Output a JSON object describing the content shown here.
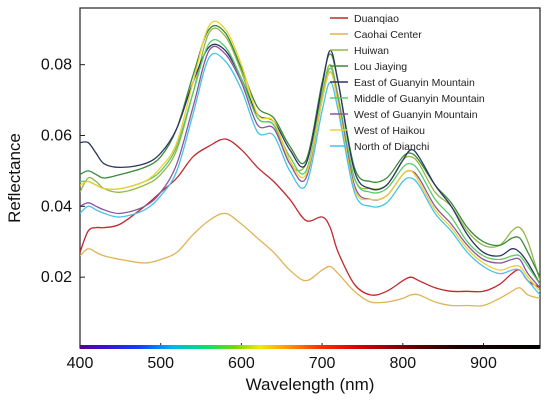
{
  "chart_data": {
    "type": "line",
    "title": "",
    "xlabel": "Wavelength (nm)",
    "ylabel": "Reflectance",
    "xlim": [
      400,
      970
    ],
    "ylim": [
      0.0,
      0.096
    ],
    "xticks": [
      400,
      500,
      600,
      700,
      800,
      900
    ],
    "xtick_labels": [
      "400",
      "500",
      "600",
      "700",
      "800",
      "900"
    ],
    "yticks": [
      0.02,
      0.04,
      0.06,
      0.08
    ],
    "ytick_labels": [
      "0.02",
      "0.04",
      "0.06",
      "0.08"
    ],
    "grid": false,
    "legend_position": "top-right",
    "spectrum_bar": true,
    "x": [
      400,
      410,
      420,
      430,
      450,
      480,
      500,
      520,
      540,
      560,
      580,
      600,
      620,
      640,
      660,
      680,
      700,
      710,
      720,
      740,
      760,
      780,
      800,
      810,
      820,
      840,
      860,
      880,
      900,
      920,
      935,
      945,
      955,
      970
    ],
    "series": [
      {
        "name": "Duanqiao",
        "color": "#c0282d",
        "values": [
          0.027,
          0.033,
          0.034,
          0.034,
          0.035,
          0.04,
          0.044,
          0.048,
          0.054,
          0.057,
          0.059,
          0.056,
          0.051,
          0.047,
          0.042,
          0.036,
          0.037,
          0.034,
          0.027,
          0.018,
          0.015,
          0.016,
          0.019,
          0.02,
          0.019,
          0.017,
          0.016,
          0.016,
          0.016,
          0.018,
          0.021,
          0.022,
          0.019,
          0.017
        ]
      },
      {
        "name": "Caohai Center",
        "color": "#e0b455",
        "values": [
          0.026,
          0.028,
          0.027,
          0.026,
          0.025,
          0.024,
          0.025,
          0.027,
          0.032,
          0.036,
          0.038,
          0.035,
          0.031,
          0.027,
          0.022,
          0.019,
          0.022,
          0.023,
          0.021,
          0.016,
          0.013,
          0.013,
          0.014,
          0.015,
          0.015,
          0.013,
          0.012,
          0.012,
          0.012,
          0.014,
          0.016,
          0.017,
          0.015,
          0.014
        ]
      },
      {
        "name": "Huiwan",
        "color": "#93b84a",
        "values": [
          0.044,
          0.048,
          0.047,
          0.045,
          0.044,
          0.046,
          0.049,
          0.056,
          0.072,
          0.089,
          0.088,
          0.078,
          0.065,
          0.063,
          0.052,
          0.052,
          0.072,
          0.08,
          0.071,
          0.048,
          0.045,
          0.046,
          0.053,
          0.054,
          0.052,
          0.044,
          0.04,
          0.033,
          0.029,
          0.029,
          0.033,
          0.034,
          0.03,
          0.019
        ]
      },
      {
        "name": "Lou Jiaying",
        "color": "#3a8a3a",
        "values": [
          0.049,
          0.05,
          0.049,
          0.048,
          0.049,
          0.051,
          0.054,
          0.062,
          0.077,
          0.09,
          0.089,
          0.079,
          0.068,
          0.065,
          0.057,
          0.053,
          0.075,
          0.083,
          0.075,
          0.051,
          0.047,
          0.048,
          0.054,
          0.055,
          0.053,
          0.046,
          0.041,
          0.034,
          0.03,
          0.029,
          0.031,
          0.031,
          0.027,
          0.02
        ]
      },
      {
        "name": "East of Guanyin Mountain",
        "color": "#2e3560",
        "values": [
          0.058,
          0.058,
          0.055,
          0.052,
          0.051,
          0.052,
          0.055,
          0.062,
          0.075,
          0.085,
          0.084,
          0.076,
          0.066,
          0.064,
          0.056,
          0.052,
          0.074,
          0.084,
          0.075,
          0.05,
          0.045,
          0.046,
          0.053,
          0.056,
          0.054,
          0.046,
          0.04,
          0.032,
          0.027,
          0.026,
          0.028,
          0.027,
          0.024,
          0.018
        ]
      },
      {
        "name": "Middle of Guanyin Mountain",
        "color": "#58cc6c",
        "values": [
          0.047,
          0.047,
          0.046,
          0.045,
          0.045,
          0.047,
          0.05,
          0.057,
          0.072,
          0.086,
          0.085,
          0.076,
          0.065,
          0.063,
          0.054,
          0.05,
          0.071,
          0.079,
          0.071,
          0.048,
          0.044,
          0.045,
          0.051,
          0.052,
          0.05,
          0.042,
          0.037,
          0.03,
          0.026,
          0.025,
          0.026,
          0.026,
          0.023,
          0.018
        ]
      },
      {
        "name": "West of Guanyin Mountain",
        "color": "#8a559c",
        "values": [
          0.04,
          0.041,
          0.04,
          0.039,
          0.038,
          0.04,
          0.044,
          0.052,
          0.068,
          0.084,
          0.083,
          0.075,
          0.063,
          0.062,
          0.052,
          0.048,
          0.07,
          0.078,
          0.07,
          0.046,
          0.042,
          0.043,
          0.049,
          0.05,
          0.048,
          0.04,
          0.035,
          0.029,
          0.025,
          0.024,
          0.025,
          0.025,
          0.021,
          0.017
        ]
      },
      {
        "name": "West of Haikou",
        "color": "#f0d030",
        "values": [
          0.046,
          0.047,
          0.046,
          0.045,
          0.045,
          0.047,
          0.051,
          0.058,
          0.075,
          0.091,
          0.09,
          0.08,
          0.066,
          0.064,
          0.053,
          0.049,
          0.07,
          0.078,
          0.069,
          0.045,
          0.042,
          0.043,
          0.049,
          0.05,
          0.047,
          0.039,
          0.034,
          0.028,
          0.024,
          0.022,
          0.023,
          0.023,
          0.02,
          0.016
        ]
      },
      {
        "name": "North of Dianchi",
        "color": "#45c4e6",
        "values": [
          0.038,
          0.04,
          0.039,
          0.038,
          0.037,
          0.039,
          0.043,
          0.05,
          0.066,
          0.082,
          0.081,
          0.073,
          0.061,
          0.06,
          0.05,
          0.046,
          0.067,
          0.075,
          0.067,
          0.044,
          0.04,
          0.041,
          0.047,
          0.048,
          0.046,
          0.038,
          0.033,
          0.027,
          0.023,
          0.021,
          0.022,
          0.022,
          0.019,
          0.015
        ]
      }
    ]
  }
}
